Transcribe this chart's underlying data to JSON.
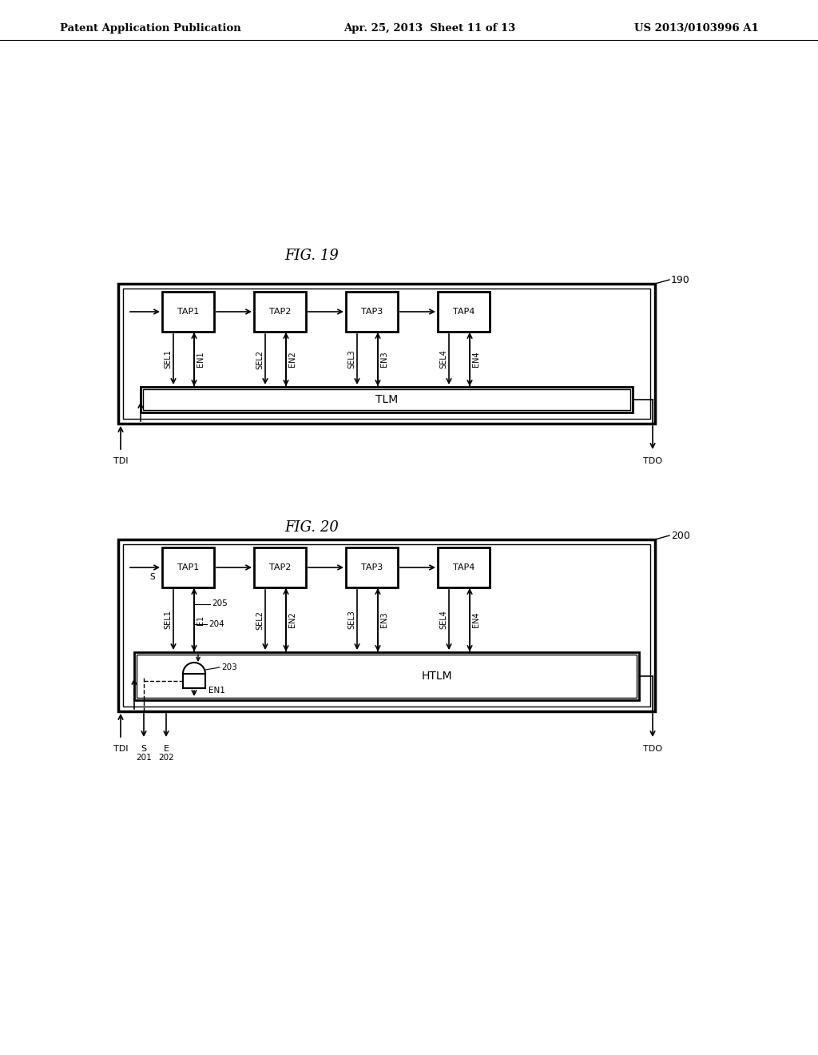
{
  "header_left": "Patent Application Publication",
  "header_center": "Apr. 25, 2013  Sheet 11 of 13",
  "header_right": "US 2013/0103996 A1",
  "fig19_title": "FIG. 19",
  "fig20_title": "FIG. 20",
  "tap_labels": [
    "TAP1",
    "TAP2",
    "TAP3",
    "TAP4"
  ],
  "sel_labels": [
    "SEL1",
    "SEL2",
    "SEL3",
    "SEL4"
  ],
  "en_labels_fig19": [
    "EN1",
    "EN2",
    "EN3",
    "EN4"
  ],
  "en_labels_fig20": [
    "E1",
    "EN2",
    "EN3",
    "EN4"
  ],
  "tlm_label": "TLM",
  "htlm_label": "HTLM",
  "tdi_label": "TDI",
  "tdo_label": "TDO",
  "label_190": "190",
  "label_200": "200",
  "label_203": "203",
  "label_204": "204",
  "label_205": "205",
  "label_201": "201",
  "label_202": "202",
  "label_s": "S",
  "label_e": "E",
  "label_en1": "EN1",
  "bg_color": "#ffffff"
}
